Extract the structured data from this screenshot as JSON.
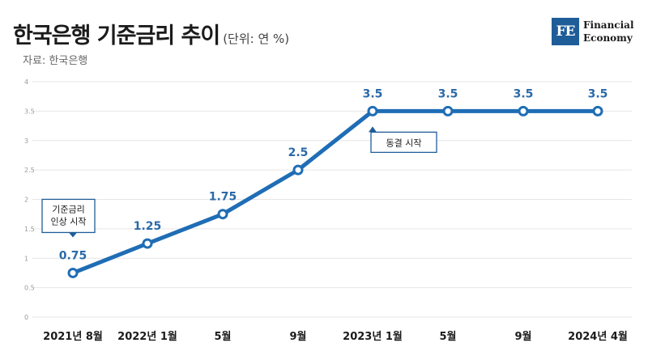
{
  "header": {
    "title": "한국은행 기준금리 추이",
    "unit": "(단위: 연 %)",
    "source": "자료: 한국은행"
  },
  "logo": {
    "mark": "FE",
    "line1": "Financial",
    "line2": "Economy"
  },
  "colors": {
    "series": "#1f6db5",
    "label": "#2b6aa8",
    "brand": "#1f5d99"
  },
  "chart_data": {
    "type": "line",
    "title": "한국은행 기준금리 추이",
    "categories": [
      "2021년 8월",
      "2022년 1월",
      "5월",
      "9월",
      "2023년 1월",
      "5월",
      "9월",
      "2024년 4월"
    ],
    "series": [
      {
        "values": [
          0.75,
          1.25,
          1.75,
          2.5,
          3.5,
          3.5,
          3.5,
          3.5
        ]
      }
    ],
    "data_labels": [
      "0.75",
      "1.25",
      "1.75",
      "2.5",
      "3.5",
      "3.5",
      "3.5",
      "3.5"
    ],
    "yticks": [
      "0",
      "0.5",
      "1",
      "1.5",
      "2",
      "2.5",
      "3",
      "3.5",
      "4"
    ],
    "ylim": [
      0,
      4
    ],
    "grid": true,
    "annotations": [
      {
        "lines": [
          "기준금리",
          "인상 시작"
        ],
        "point_index": 0,
        "pointer": "down"
      },
      {
        "lines": [
          "동결 시작"
        ],
        "point_index": 4,
        "pointer": "up"
      }
    ]
  }
}
